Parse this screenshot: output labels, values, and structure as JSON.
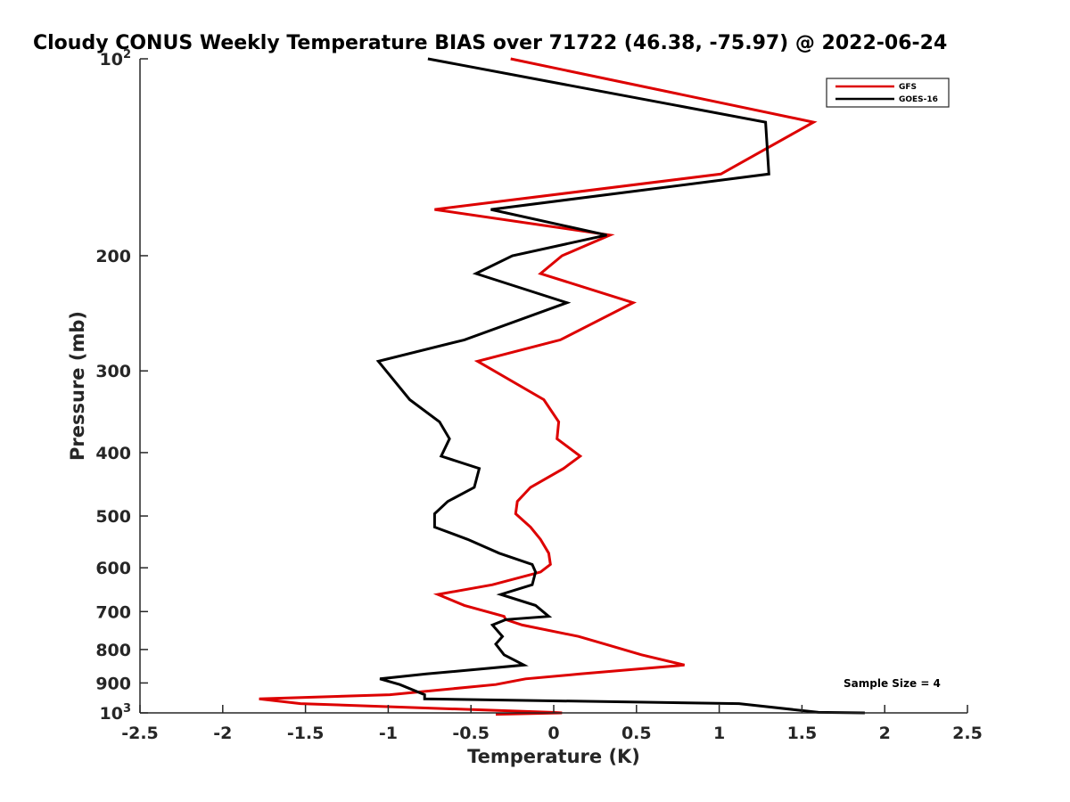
{
  "chart_data": {
    "type": "line",
    "title": "Cloudy CONUS Weekly Temperature BIAS over 71722 (46.38, -75.97) @ 2022-06-24",
    "xlabel": "Temperature (K)",
    "ylabel": "Pressure (mb)",
    "xlim": [
      -2.5,
      2.5
    ],
    "ylim": [
      100,
      1000
    ],
    "y_scale": "log",
    "y_reversed": true,
    "grid": false,
    "legend_position": "top-right",
    "x_ticks": [
      -2.5,
      -2,
      -1.5,
      -1,
      -0.5,
      0,
      0.5,
      1,
      1.5,
      2,
      2.5
    ],
    "x_tick_labels": [
      "-2.5",
      "-2",
      "-1.5",
      "-1",
      "-0.5",
      "0",
      "0.5",
      "1",
      "1.5",
      "2",
      "2.5"
    ],
    "y_ticks": [
      {
        "value": 100,
        "label": "10",
        "sup": "2"
      },
      {
        "value": 200,
        "label": "200",
        "sup": ""
      },
      {
        "value": 300,
        "label": "300",
        "sup": ""
      },
      {
        "value": 400,
        "label": "400",
        "sup": ""
      },
      {
        "value": 500,
        "label": "500",
        "sup": ""
      },
      {
        "value": 600,
        "label": "600",
        "sup": ""
      },
      {
        "value": 700,
        "label": "700",
        "sup": ""
      },
      {
        "value": 800,
        "label": "800",
        "sup": ""
      },
      {
        "value": 900,
        "label": "900",
        "sup": ""
      },
      {
        "value": 1000,
        "label": "10",
        "sup": "3"
      }
    ],
    "annotation": "Sample Size = 4",
    "series": [
      {
        "name": "GFS",
        "color": "#dd0000",
        "points": [
          [
            -0.26,
            100
          ],
          [
            1.57,
            125
          ],
          [
            1.01,
            150
          ],
          [
            -0.72,
            170
          ],
          [
            0.34,
            186
          ],
          [
            0.05,
            200
          ],
          [
            -0.08,
            213
          ],
          [
            0.48,
            236
          ],
          [
            0.04,
            269
          ],
          [
            -0.46,
            290
          ],
          [
            -0.06,
            332
          ],
          [
            0.03,
            359
          ],
          [
            0.02,
            381
          ],
          [
            0.16,
            405
          ],
          [
            0.06,
            423
          ],
          [
            -0.14,
            452
          ],
          [
            -0.22,
            475
          ],
          [
            -0.23,
            496
          ],
          [
            -0.14,
            520
          ],
          [
            -0.08,
            543
          ],
          [
            -0.03,
            570
          ],
          [
            -0.02,
            593
          ],
          [
            -0.08,
            609
          ],
          [
            -0.37,
            637
          ],
          [
            -0.7,
            659
          ],
          [
            -0.54,
            685
          ],
          [
            -0.3,
            712
          ],
          [
            -0.29,
            720
          ],
          [
            -0.19,
            734
          ],
          [
            0.15,
            764
          ],
          [
            0.31,
            785
          ],
          [
            0.53,
            815
          ],
          [
            0.79,
            845
          ],
          [
            0.16,
            872
          ],
          [
            -0.17,
            887
          ],
          [
            -0.35,
            905
          ],
          [
            -0.99,
            938
          ],
          [
            -1.78,
            952
          ],
          [
            -1.53,
            968
          ],
          [
            -0.01,
            998
          ],
          [
            0.05,
            1000
          ],
          [
            -0.35,
            1005
          ]
        ]
      },
      {
        "name": "GOES-16",
        "color": "#000000",
        "points": [
          [
            -0.76,
            100
          ],
          [
            1.28,
            125
          ],
          [
            1.3,
            150
          ],
          [
            -0.38,
            170
          ],
          [
            0.32,
            186
          ],
          [
            -0.25,
            200
          ],
          [
            -0.47,
            213
          ],
          [
            0.08,
            236
          ],
          [
            -0.54,
            269
          ],
          [
            -1.06,
            290
          ],
          [
            -0.87,
            332
          ],
          [
            -0.69,
            359
          ],
          [
            -0.63,
            381
          ],
          [
            -0.68,
            405
          ],
          [
            -0.45,
            423
          ],
          [
            -0.48,
            452
          ],
          [
            -0.64,
            475
          ],
          [
            -0.72,
            496
          ],
          [
            -0.72,
            520
          ],
          [
            -0.52,
            543
          ],
          [
            -0.33,
            570
          ],
          [
            -0.13,
            593
          ],
          [
            -0.11,
            609
          ],
          [
            -0.13,
            637
          ],
          [
            -0.32,
            659
          ],
          [
            -0.11,
            685
          ],
          [
            -0.03,
            712
          ],
          [
            -0.29,
            720
          ],
          [
            -0.37,
            734
          ],
          [
            -0.31,
            764
          ],
          [
            -0.35,
            785
          ],
          [
            -0.3,
            815
          ],
          [
            -0.18,
            845
          ],
          [
            -0.77,
            872
          ],
          [
            -1.05,
            887
          ],
          [
            -0.93,
            905
          ],
          [
            -0.78,
            938
          ],
          [
            -0.78,
            952
          ],
          [
            1.12,
            968
          ],
          [
            1.6,
            998
          ],
          [
            1.88,
            1000
          ]
        ]
      }
    ]
  }
}
